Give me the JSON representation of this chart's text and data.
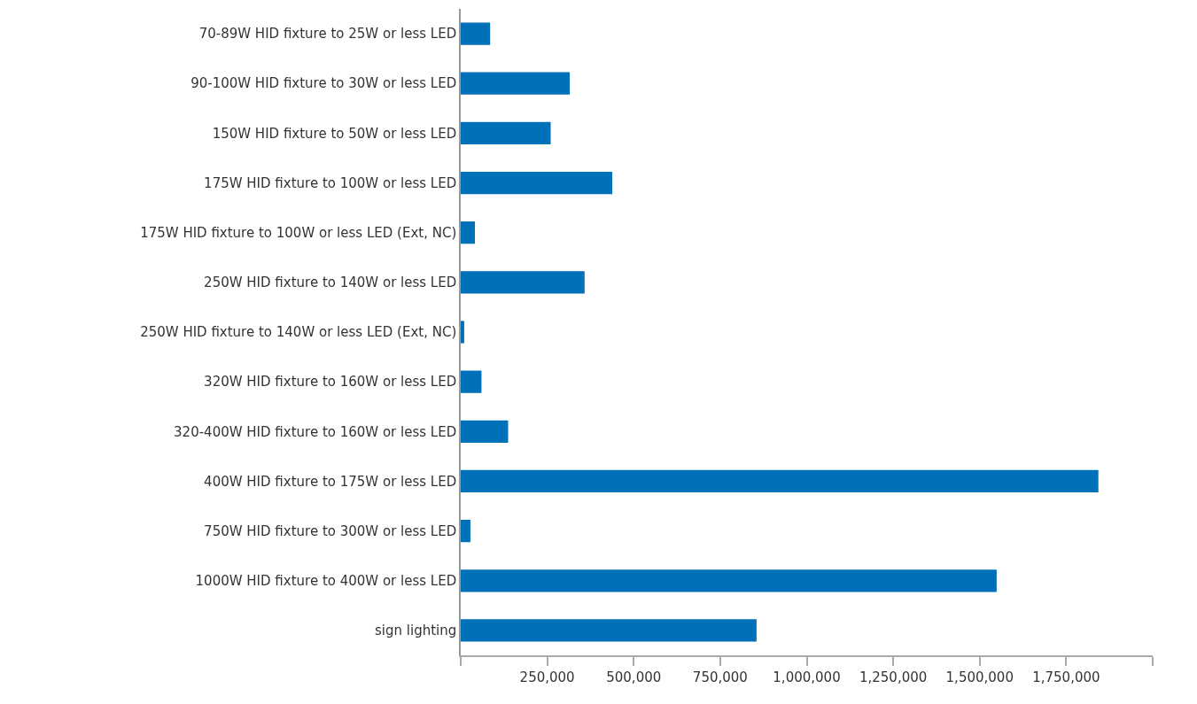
{
  "chart_data": {
    "type": "bar",
    "orientation": "horizontal",
    "categories": [
      "70-89W HID fixture to 25W or less LED",
      "90-100W HID fixture to 30W or less LED",
      "150W HID fixture to 50W or less LED",
      "175W HID fixture to 100W or less LED",
      "175W HID fixture to 100W or less LED (Ext, NC)",
      "250W HID fixture to 140W or less LED",
      "250W HID fixture to 140W or less LED (Ext, NC)",
      "320W HID fixture to 160W or less LED",
      "320-400W HID fixture to 160W or less LED",
      "400W HID fixture to 175W or less LED",
      "750W HID fixture to 300W or less LED",
      "1000W HID fixture to 400W or less LED",
      "sign lighting"
    ],
    "values": [
      85000,
      315000,
      260000,
      438000,
      41000,
      358000,
      10000,
      60000,
      137000,
      1843000,
      28000,
      1549000,
      855000
    ],
    "color": "#0070b8",
    "xlim": [
      0,
      2000000
    ],
    "xticks": [
      {
        "value": 0,
        "label": null
      },
      {
        "value": 250000,
        "label": "250,000"
      },
      {
        "value": 500000,
        "label": "500,000"
      },
      {
        "value": 750000,
        "label": "750,000"
      },
      {
        "value": 1000000,
        "label": "1,000,000"
      },
      {
        "value": 1250000,
        "label": "1,250,000"
      },
      {
        "value": 1500000,
        "label": "1,500,000"
      },
      {
        "value": 1750000,
        "label": "1,750,000"
      },
      {
        "value": 2000000,
        "label": null
      }
    ],
    "grid": false
  }
}
